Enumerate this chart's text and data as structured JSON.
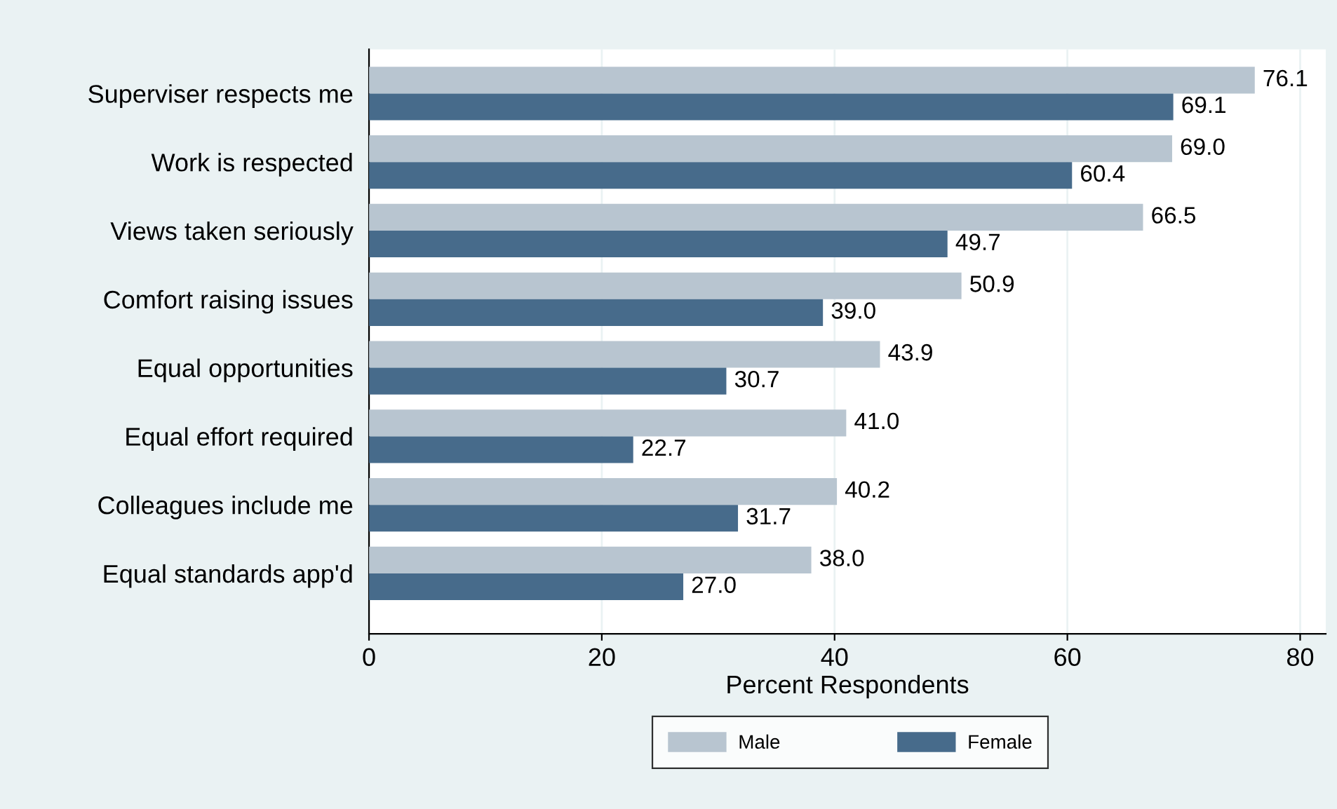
{
  "chart_data": {
    "type": "bar",
    "orientation": "horizontal",
    "categories": [
      "Superviser respects me",
      "Work is respected",
      "Views taken seriously",
      "Comfort raising issues",
      "Equal opportunities",
      "Equal effort required",
      "Colleagues include me",
      "Equal standards app'd"
    ],
    "series": [
      {
        "name": "Male",
        "color": "#b8c5d0",
        "values": [
          76.1,
          69.0,
          66.5,
          50.9,
          43.9,
          41.0,
          40.2,
          38.0
        ],
        "value_labels": [
          "76.1",
          "69.0",
          "66.5",
          "50.9",
          "43.9",
          "41.0",
          "40.2",
          "38.0"
        ]
      },
      {
        "name": "Female",
        "color": "#476b8b",
        "values": [
          69.1,
          60.4,
          49.7,
          39.0,
          30.7,
          22.7,
          31.7,
          27.0
        ],
        "value_labels": [
          "69.1",
          "60.4",
          "49.7",
          "39.0",
          "30.7",
          "22.7",
          "31.7",
          "27.0"
        ]
      }
    ],
    "xlabel": "Percent Respondents",
    "xlim": [
      0,
      82.2
    ],
    "xticks": [
      0,
      20,
      40,
      60,
      80
    ],
    "grid": "x",
    "legend": "bottom"
  }
}
